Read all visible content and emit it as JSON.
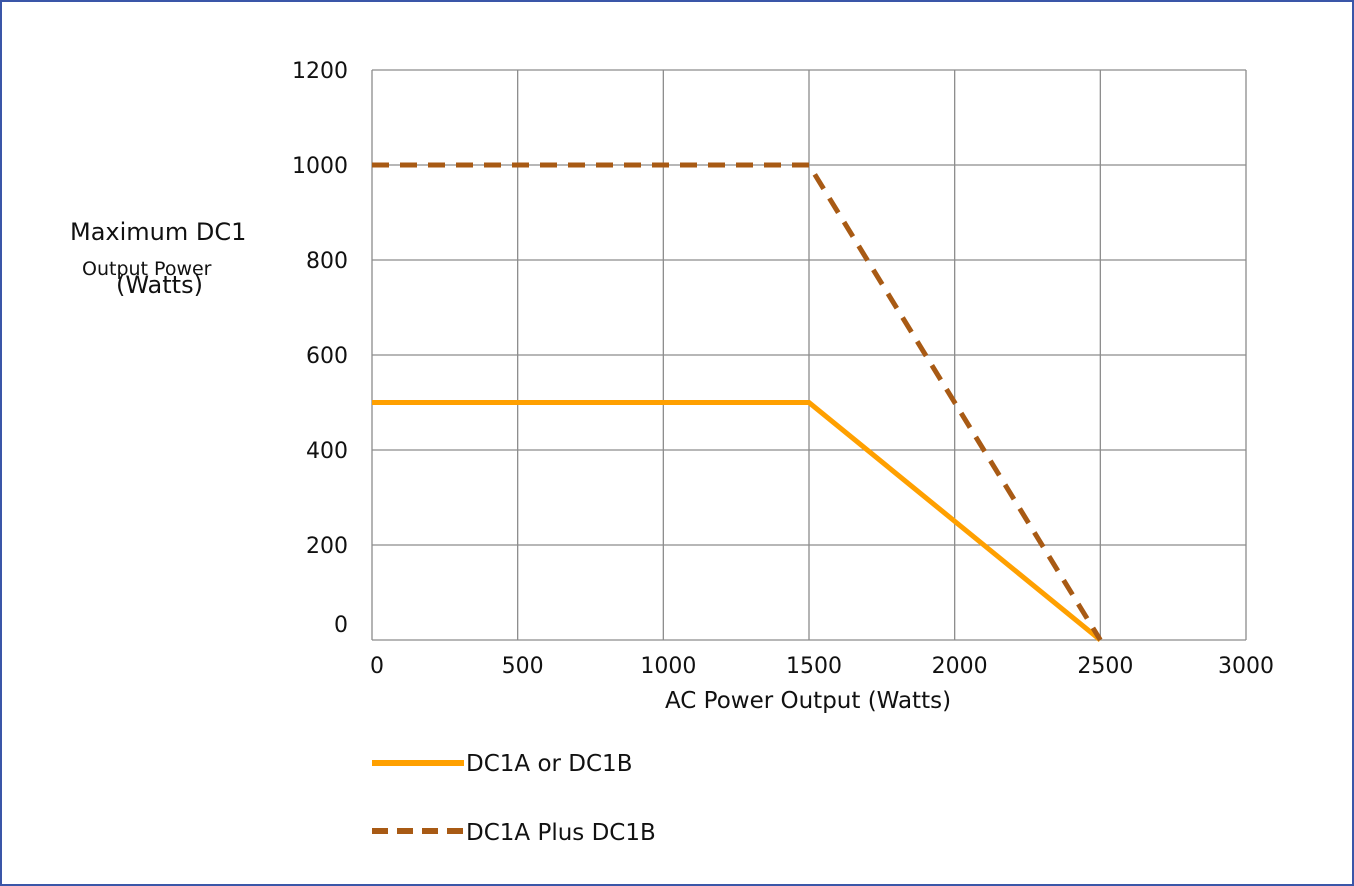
{
  "chart_data": {
    "type": "line",
    "title": "",
    "xlabel": "AC Power Output (Watts)",
    "ylabel_lines": [
      "Maximum DC1",
      "Output Power",
      "(Watts)"
    ],
    "xlim": [
      0,
      3000
    ],
    "ylim": [
      0,
      1200
    ],
    "xticks": [
      0,
      500,
      1000,
      1500,
      2000,
      2500,
      3000
    ],
    "yticks": [
      0,
      200,
      400,
      600,
      800,
      1000,
      1200
    ],
    "grid": true,
    "legend_position": "bottom-left",
    "series": [
      {
        "name": "DC1A or DC1B",
        "style": "solid",
        "color": "#ffa000",
        "x": [
          0,
          1500,
          2500
        ],
        "y": [
          500,
          500,
          0
        ]
      },
      {
        "name": "DC1A Plus DC1B",
        "style": "dashed",
        "color": "#a85a14",
        "x": [
          0,
          1500,
          2500
        ],
        "y": [
          1000,
          1000,
          0
        ]
      }
    ]
  }
}
